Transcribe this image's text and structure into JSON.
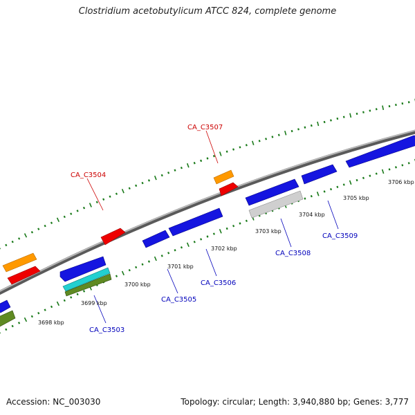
{
  "title": "Clostridium acetobutylicum ATCC 824, complete genome",
  "footer": {
    "accession": "Accession: NC_003030",
    "summary": "Topology: circular; Length: 3,940,880 bp; Genes: 3,777"
  },
  "colors": {
    "backbone": "#8a8a8a",
    "tick": "#1a7a1a",
    "forward_label": "#cc0000",
    "reverse_label": "#0000bb",
    "blue_gene": "#1515e0",
    "red_gene": "#ee0000",
    "orange_gene": "#ff9900",
    "gray_gene": "#cfcfcf",
    "cyan_gene": "#22d0d0",
    "olive_gene": "#5f8a22"
  },
  "scale_labels": [
    "3698 kbp",
    "3699 kbp",
    "3700 kbp",
    "3701 kbp",
    "3702 kbp",
    "3703 kbp",
    "3704 kbp",
    "3705 kbp",
    "3706 kbp"
  ],
  "gene_labels": {
    "forward": [
      "CA_C3504",
      "CA_C3507"
    ],
    "reverse": [
      "CA_C3503",
      "CA_C3505",
      "CA_C3506",
      "CA_C3508",
      "CA_C3509"
    ]
  }
}
